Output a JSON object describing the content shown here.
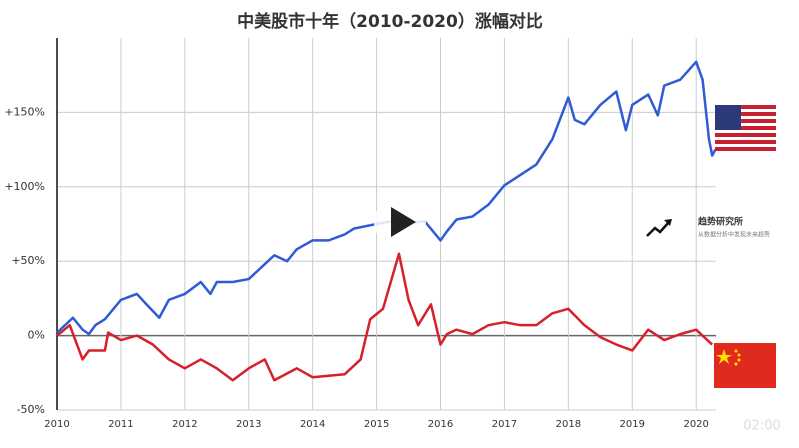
{
  "chart_data": {
    "type": "line",
    "title": "中美股市十年（2010-2020）涨幅对比",
    "xlim": [
      2010,
      2020.31
    ],
    "xticks": [
      2010,
      2011,
      2012,
      2013,
      2014,
      2015,
      2016,
      2017,
      2018,
      2019,
      2020
    ],
    "ylim": [
      -50,
      200
    ],
    "yticks": [
      {
        "value": -50,
        "label": "-50%"
      },
      {
        "value": 0,
        "label": "0%"
      },
      {
        "value": 50,
        "label": "+50%"
      },
      {
        "value": 100,
        "label": "+100%"
      },
      {
        "value": 150,
        "label": "+150%"
      }
    ],
    "grid": true,
    "series": [
      {
        "color": "#2f5bd6",
        "x": [
          2010,
          2010.25,
          2010.4,
          2010.5,
          2010.6,
          2010.75,
          2011,
          2011.25,
          2011.4,
          2011.6,
          2011.75,
          2012,
          2012.25,
          2012.4,
          2012.5,
          2012.75,
          2013,
          2013.25,
          2013.4,
          2013.6,
          2013.75,
          2014,
          2014.25,
          2014.5,
          2014.65,
          2015,
          2015.4,
          2015.6,
          2015.75,
          2016,
          2016.1,
          2016.25,
          2016.5,
          2016.75,
          2017,
          2017.25,
          2017.5,
          2017.75,
          2018,
          2018.1,
          2018.25,
          2018.5,
          2018.75,
          2018.9,
          2019,
          2019.25,
          2019.4,
          2019.5,
          2019.75,
          2020,
          2020.1,
          2020.2,
          2020.25,
          2020.3
        ],
        "values": [
          2,
          12,
          4,
          1,
          7,
          11,
          24,
          28,
          21,
          12,
          24,
          28,
          36,
          28,
          36,
          36,
          38,
          48,
          54,
          50,
          58,
          64,
          64,
          68,
          72,
          75,
          78,
          76,
          77,
          64,
          70,
          78,
          80,
          88,
          101,
          108,
          115,
          132,
          160,
          145,
          142,
          155,
          164,
          138,
          155,
          162,
          148,
          168,
          172,
          184,
          172,
          132,
          121,
          125
        ]
      },
      {
        "color": "#d6202a",
        "x": [
          2010,
          2010.2,
          2010.4,
          2010.5,
          2010.75,
          2010.8,
          2011,
          2011.25,
          2011.5,
          2011.75,
          2012,
          2012.25,
          2012.5,
          2012.75,
          2013,
          2013.25,
          2013.4,
          2013.75,
          2014,
          2014.5,
          2014.75,
          2014.9,
          2015.1,
          2015.35,
          2015.5,
          2015.65,
          2015.85,
          2016,
          2016.1,
          2016.25,
          2016.5,
          2016.75,
          2017,
          2017.25,
          2017.5,
          2017.75,
          2018,
          2018.25,
          2018.5,
          2018.75,
          2019,
          2019.25,
          2019.5,
          2019.75,
          2020,
          2020.25
        ],
        "values": [
          0,
          7,
          -16,
          -10,
          -10,
          2,
          -3,
          0,
          -6,
          -16,
          -22,
          -16,
          -22,
          -30,
          -22,
          -16,
          -30,
          -22,
          -28,
          -26,
          -16,
          11,
          18,
          55,
          24,
          7,
          21,
          -6,
          1,
          4,
          1,
          7,
          9,
          7,
          7,
          15,
          18,
          7,
          -1,
          -6,
          -10,
          4,
          -3,
          1,
          4,
          -6
        ]
      }
    ],
    "annotations": [
      "趋势研究所",
      "从数据分析中发现未来趋势",
      "02:00"
    ]
  }
}
